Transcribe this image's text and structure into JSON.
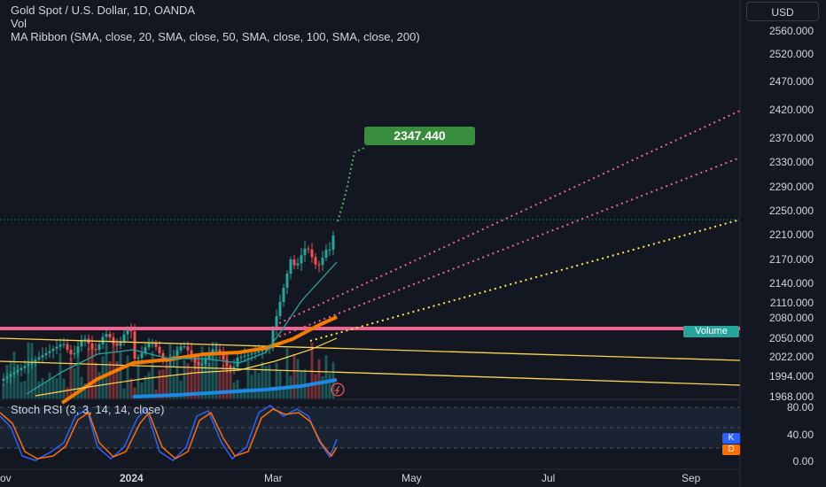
{
  "legend": {
    "symbol_line": "Gold Spot / U.S. Dollar, 1D, OANDA",
    "vol_line": "Vol",
    "ma_line": "MA Ribbon (SMA, close, 20, SMA, close, 50, SMA, close, 100, SMA, close, 200)"
  },
  "currency_button": "USD",
  "price_axis": [
    "2560.000",
    "2520.000",
    "2470.000",
    "2420.000",
    "2370.000",
    "2330.000",
    "2290.000",
    "2250.000",
    "2210.000",
    "2170.000",
    "2140.000",
    "2110.000",
    "2080.000",
    "2050.000",
    "2022.000",
    "1994.000",
    "1968.000"
  ],
  "callout_price": "2347.440",
  "volume_label": "Volume",
  "stoch": {
    "label": "Stoch RSI (3, 3, 14, 14, close)",
    "axis": [
      "80.00",
      "40.00",
      "0.00"
    ],
    "k_label": "K",
    "d_label": "D"
  },
  "time_axis": [
    {
      "label": "ov",
      "bold": false
    },
    {
      "label": "2024",
      "bold": true
    },
    {
      "label": "Mar",
      "bold": false
    },
    {
      "label": "May",
      "bold": false
    },
    {
      "label": "Jul",
      "bold": false
    },
    {
      "label": "Sep",
      "bold": false
    }
  ],
  "colors": {
    "bg": "#131722",
    "up": "#26a69a",
    "down": "#ef5350",
    "ma20": "#26a69a",
    "ma50": "#f57c00",
    "ma100": "#ffd54f",
    "ma200": "#1e88e5",
    "pink": "#f06292",
    "yellow": "#ffeb3b",
    "callout": "#388e3c",
    "stochK": "#2962ff",
    "stochD": "#ff6d00"
  }
}
